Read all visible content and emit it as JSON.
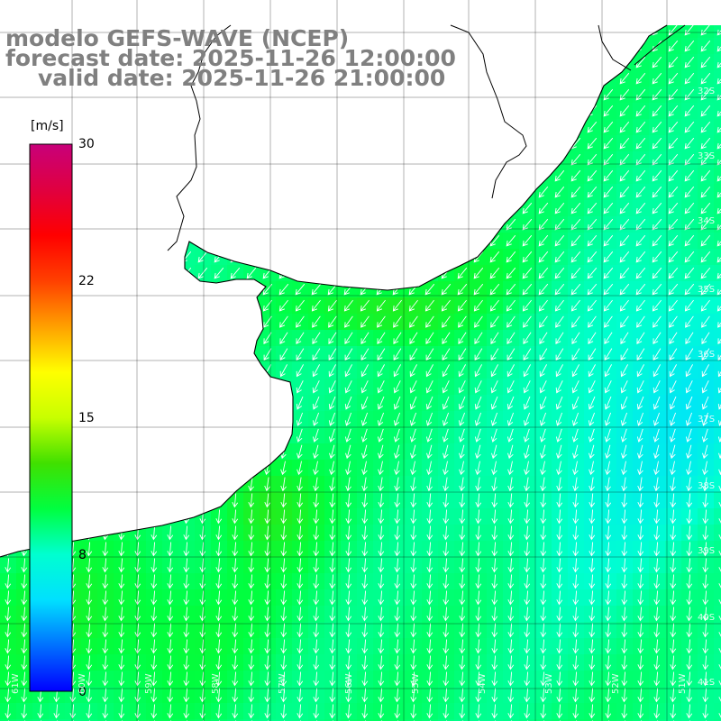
{
  "title": {
    "line1": "modelo GEFS-WAVE (NCEP)",
    "line2": "forecast date: 2025-11-26 12:00:00",
    "line3": "valid date: 2025-11-26 21:00:00"
  },
  "colorbar": {
    "unit": "[m/s]",
    "ticks": [
      "30",
      "22",
      "15",
      "8",
      "0"
    ],
    "tick_values": [
      30,
      22,
      15,
      8,
      0
    ],
    "range": [
      0,
      30
    ],
    "colors": [
      "#0000ff",
      "#0070ff",
      "#00e0ff",
      "#00ffd0",
      "#00ff40",
      "#40e000",
      "#c8ff00",
      "#ffff00",
      "#ffa000",
      "#ff4000",
      "#ff0000",
      "#e00040",
      "#c8007a"
    ]
  },
  "map": {
    "field": "wind speed",
    "arrow_color": "#ffffff",
    "coast_color": "#000000",
    "grid_color": "#000000",
    "lat_labels": [
      "32S",
      "33S",
      "34S",
      "35S",
      "36S",
      "37S",
      "38S",
      "39S",
      "40S",
      "41S"
    ],
    "lon_labels": [
      "61W",
      "60W",
      "59W",
      "58W",
      "57W",
      "56W",
      "55W",
      "54W",
      "53W",
      "52W",
      "51W"
    ]
  }
}
